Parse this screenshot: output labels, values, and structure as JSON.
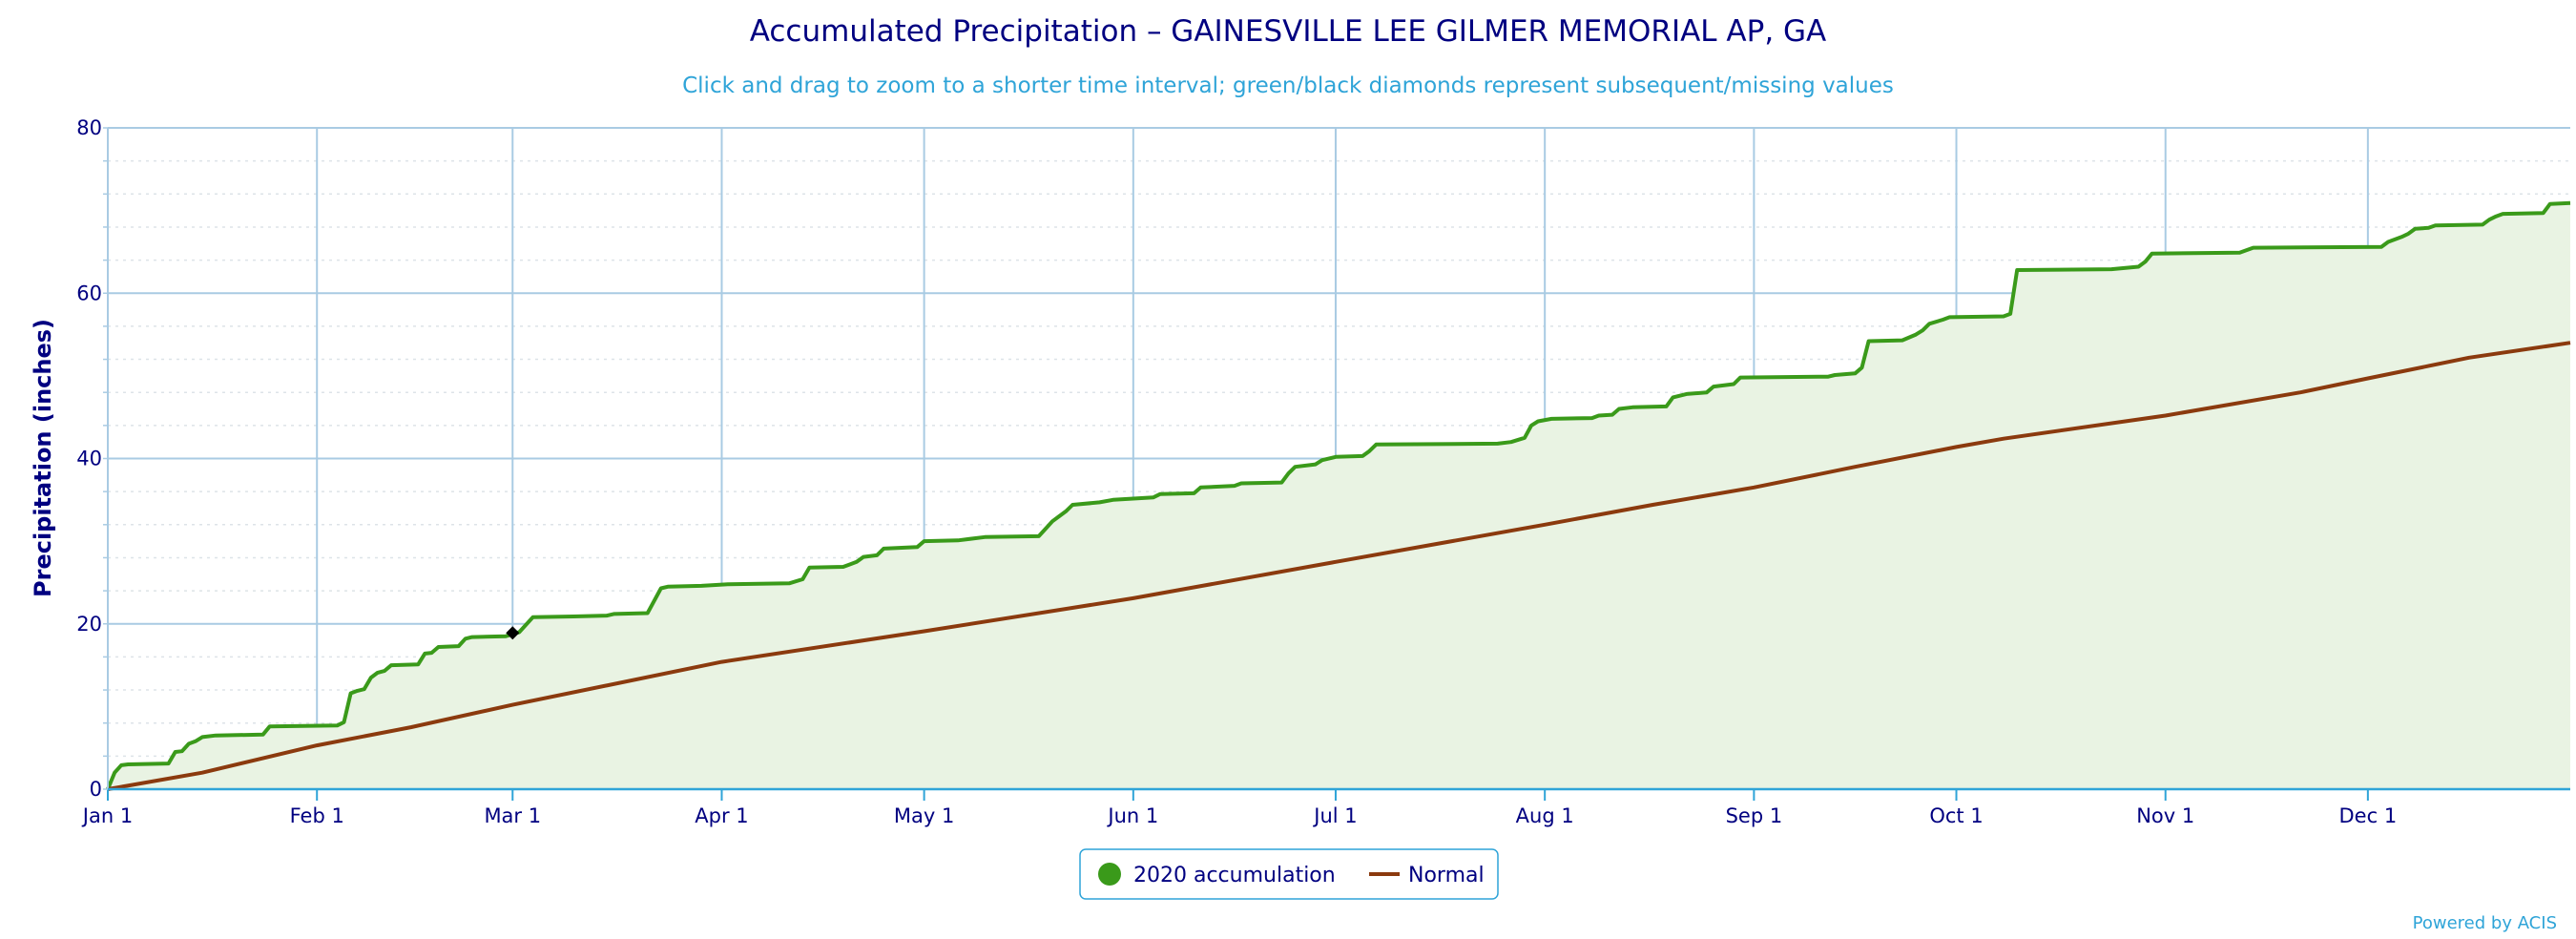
{
  "chart_data": {
    "type": "area",
    "title": "Accumulated Precipitation – GAINESVILLE LEE GILMER MEMORIAL AP, GA",
    "subtitle": "Click and drag to zoom to a shorter time interval; green/black diamonds represent subsequent/missing values",
    "ylabel": "Precipitation (inches)",
    "xlabel": "",
    "ylim": [
      0,
      80
    ],
    "yticks": [
      0,
      20,
      40,
      60,
      80
    ],
    "x_start": "Jan 1",
    "x_end": "Dec 31",
    "xticks": [
      {
        "day": 1,
        "label": "Jan 1"
      },
      {
        "day": 32,
        "label": "Feb 1"
      },
      {
        "day": 61,
        "label": "Mar 1"
      },
      {
        "day": 92,
        "label": "Apr 1"
      },
      {
        "day": 122,
        "label": "May 1"
      },
      {
        "day": 153,
        "label": "Jun 1"
      },
      {
        "day": 183,
        "label": "Jul 1"
      },
      {
        "day": 214,
        "label": "Aug 1"
      },
      {
        "day": 245,
        "label": "Sep 1"
      },
      {
        "day": 275,
        "label": "Oct 1"
      },
      {
        "day": 306,
        "label": "Nov 1"
      },
      {
        "day": 336,
        "label": "Dec 1"
      }
    ],
    "grid": true,
    "legend_position": "bottom-center",
    "series": [
      {
        "name": "2020 accumulation",
        "color": "#3a9a1a",
        "fill": "#e9f3e3",
        "points": [
          [
            1,
            0.0
          ],
          [
            2,
            2.0
          ],
          [
            3,
            2.9
          ],
          [
            4,
            3.0
          ],
          [
            10,
            3.1
          ],
          [
            11,
            4.5
          ],
          [
            12,
            4.6
          ],
          [
            13,
            5.5
          ],
          [
            14,
            5.8
          ],
          [
            15,
            6.3
          ],
          [
            17,
            6.5
          ],
          [
            24,
            6.6
          ],
          [
            25,
            7.6
          ],
          [
            35,
            7.7
          ],
          [
            36,
            8.1
          ],
          [
            37,
            11.6
          ],
          [
            38,
            11.9
          ],
          [
            39,
            12.1
          ],
          [
            40,
            13.5
          ],
          [
            41,
            14.1
          ],
          [
            42,
            14.3
          ],
          [
            43,
            15.0
          ],
          [
            47,
            15.1
          ],
          [
            48,
            16.4
          ],
          [
            49,
            16.5
          ],
          [
            50,
            17.2
          ],
          [
            53,
            17.3
          ],
          [
            54,
            18.2
          ],
          [
            55,
            18.4
          ],
          [
            60,
            18.5
          ],
          [
            62,
            19.0
          ],
          [
            64,
            20.8
          ],
          [
            70,
            20.9
          ],
          [
            75,
            21.0
          ],
          [
            76,
            21.2
          ],
          [
            81,
            21.3
          ],
          [
            83,
            24.3
          ],
          [
            84,
            24.5
          ],
          [
            89,
            24.6
          ],
          [
            93,
            24.8
          ],
          [
            102,
            24.9
          ],
          [
            104,
            25.4
          ],
          [
            105,
            26.8
          ],
          [
            110,
            26.9
          ],
          [
            112,
            27.5
          ],
          [
            113,
            28.1
          ],
          [
            115,
            28.3
          ],
          [
            116,
            29.1
          ],
          [
            121,
            29.3
          ],
          [
            122,
            30.0
          ],
          [
            127,
            30.1
          ],
          [
            131,
            30.5
          ],
          [
            139,
            30.6
          ],
          [
            140,
            31.5
          ],
          [
            141,
            32.4
          ],
          [
            142,
            33.0
          ],
          [
            143,
            33.6
          ],
          [
            144,
            34.4
          ],
          [
            148,
            34.7
          ],
          [
            150,
            35.0
          ],
          [
            156,
            35.3
          ],
          [
            157,
            35.7
          ],
          [
            162,
            35.8
          ],
          [
            163,
            36.5
          ],
          [
            168,
            36.7
          ],
          [
            169,
            37.0
          ],
          [
            175,
            37.1
          ],
          [
            176,
            38.2
          ],
          [
            177,
            39.0
          ],
          [
            180,
            39.3
          ],
          [
            181,
            39.8
          ],
          [
            183,
            40.2
          ],
          [
            187,
            40.3
          ],
          [
            188,
            40.9
          ],
          [
            189,
            41.7
          ],
          [
            207,
            41.8
          ],
          [
            209,
            42.0
          ],
          [
            211,
            42.5
          ],
          [
            212,
            44.0
          ],
          [
            213,
            44.5
          ],
          [
            215,
            44.8
          ],
          [
            221,
            44.9
          ],
          [
            222,
            45.2
          ],
          [
            224,
            45.3
          ],
          [
            225,
            46.0
          ],
          [
            227,
            46.2
          ],
          [
            232,
            46.3
          ],
          [
            233,
            47.4
          ],
          [
            235,
            47.8
          ],
          [
            238,
            48.0
          ],
          [
            239,
            48.7
          ],
          [
            242,
            49.0
          ],
          [
            243,
            49.8
          ],
          [
            256,
            49.9
          ],
          [
            257,
            50.1
          ],
          [
            260,
            50.3
          ],
          [
            261,
            51.0
          ],
          [
            262,
            54.2
          ],
          [
            267,
            54.3
          ],
          [
            269,
            55.0
          ],
          [
            270,
            55.5
          ],
          [
            271,
            56.3
          ],
          [
            273,
            56.8
          ],
          [
            274,
            57.1
          ],
          [
            282,
            57.2
          ],
          [
            283,
            57.5
          ],
          [
            284,
            62.8
          ],
          [
            298,
            62.9
          ],
          [
            302,
            63.2
          ],
          [
            303,
            63.8
          ],
          [
            304,
            64.8
          ],
          [
            317,
            64.9
          ],
          [
            319,
            65.5
          ],
          [
            338,
            65.6
          ],
          [
            339,
            66.2
          ],
          [
            341,
            66.8
          ],
          [
            342,
            67.2
          ],
          [
            343,
            67.8
          ],
          [
            345,
            67.9
          ],
          [
            346,
            68.2
          ],
          [
            353,
            68.3
          ],
          [
            354,
            68.9
          ],
          [
            355,
            69.3
          ],
          [
            356,
            69.6
          ],
          [
            362,
            69.7
          ],
          [
            363,
            70.8
          ],
          [
            366,
            70.9
          ]
        ]
      },
      {
        "name": "Normal",
        "color": "#8b3a0e",
        "points": [
          [
            1,
            0.0
          ],
          [
            15,
            2.0
          ],
          [
            32,
            5.3
          ],
          [
            46,
            7.5
          ],
          [
            61,
            10.2
          ],
          [
            92,
            15.4
          ],
          [
            122,
            19.1
          ],
          [
            153,
            23.1
          ],
          [
            183,
            27.5
          ],
          [
            214,
            32.0
          ],
          [
            230,
            34.4
          ],
          [
            245,
            36.5
          ],
          [
            260,
            39.0
          ],
          [
            275,
            41.4
          ],
          [
            282,
            42.4
          ],
          [
            306,
            45.2
          ],
          [
            326,
            48.0
          ],
          [
            336,
            49.7
          ],
          [
            351,
            52.2
          ],
          [
            366,
            54.0
          ]
        ]
      }
    ],
    "markers": [
      {
        "type": "missing-diamond",
        "color": "#000000",
        "day": 61,
        "value": 18.9
      }
    ],
    "legend": [
      {
        "label": "2020 accumulation",
        "symbol": "circle",
        "color": "#3a9a1a"
      },
      {
        "label": "Normal",
        "symbol": "line",
        "color": "#8b3a0e"
      }
    ],
    "credit": "Powered by ACIS"
  }
}
